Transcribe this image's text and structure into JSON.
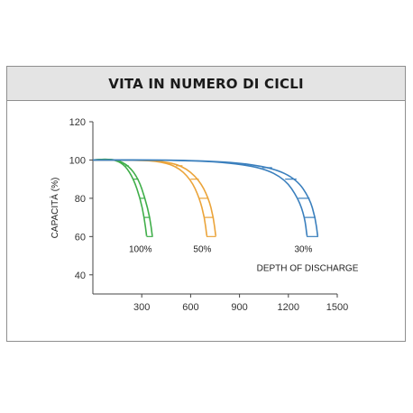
{
  "chart_data": {
    "type": "line",
    "title": "VITA IN NUMERO DI CICLI",
    "xlabel": "",
    "ylabel": "CAPACITÀ (%)",
    "xlim": [
      0,
      1500
    ],
    "ylim": [
      30,
      120
    ],
    "x_ticks": [
      "300",
      "600",
      "900",
      "1200",
      "1500"
    ],
    "y_ticks": [
      "40",
      "60",
      "80",
      "100",
      "120"
    ],
    "grid": false,
    "legend": "none",
    "series": [
      {
        "name": "100%",
        "color": "#3fae49",
        "x": [
          0,
          80,
          150,
          220,
          280,
          320,
          350,
          365
        ],
        "y": [
          100,
          100.5,
          100,
          97,
          90,
          80,
          70,
          60
        ],
        "x_inner": [
          0,
          70,
          140,
          200,
          250,
          290,
          315,
          330
        ],
        "y_inner": [
          100,
          100.5,
          100,
          97,
          90,
          80,
          70,
          60
        ]
      },
      {
        "name": "50%",
        "color": "#eba43a",
        "x": [
          0,
          250,
          420,
          550,
          650,
          710,
          740,
          755
        ],
        "y": [
          100,
          100,
          99.5,
          97,
          90,
          80,
          70,
          60
        ],
        "x_inner": [
          0,
          220,
          390,
          510,
          600,
          655,
          685,
          700
        ],
        "y_inner": [
          100,
          100,
          99.5,
          97,
          90,
          80,
          70,
          60
        ]
      },
      {
        "name": "30%",
        "color": "#3a7fbd",
        "x": [
          0,
          500,
          850,
          1100,
          1250,
          1330,
          1365,
          1380
        ],
        "y": [
          100,
          100,
          99,
          96,
          90,
          80,
          70,
          60
        ],
        "x_inner": [
          0,
          460,
          800,
          1040,
          1180,
          1260,
          1300,
          1315
        ],
        "y_inner": [
          100,
          100,
          99,
          96,
          90,
          80,
          70,
          60
        ]
      }
    ],
    "annotations": [
      {
        "text": "DEPTH OF DISCHARGE"
      }
    ]
  }
}
